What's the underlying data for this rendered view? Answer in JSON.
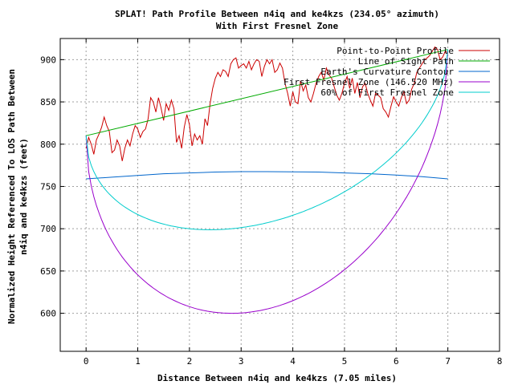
{
  "chart_data": {
    "type": "line",
    "title_line1": "SPLAT! Path Profile Between n4iq and ke4kzs (234.05° azimuth)",
    "title_line2": "With First Fresnel Zone",
    "xlabel": "Distance Between n4iq and ke4kzs (7.05 miles)",
    "ylabel_line1": "Normalized Height Referenced To LOS Path Between",
    "ylabel_line2": "n4iq and ke4kzs (feet)",
    "xlim": [
      -0.5,
      8
    ],
    "ylim": [
      555,
      925
    ],
    "xticks": [
      0,
      1,
      2,
      3,
      4,
      5,
      6,
      7,
      8
    ],
    "yticks": [
      600,
      650,
      700,
      750,
      800,
      850,
      900
    ],
    "grid": true,
    "legend_position": "top-right",
    "series": [
      {
        "name": "Point-to-Point Profile",
        "color": "#cc0000",
        "x": [
          0,
          0.05,
          0.1,
          0.15,
          0.2,
          0.25,
          0.3,
          0.35,
          0.4,
          0.45,
          0.5,
          0.55,
          0.6,
          0.65,
          0.7,
          0.75,
          0.8,
          0.85,
          0.9,
          0.95,
          1.0,
          1.05,
          1.1,
          1.15,
          1.2,
          1.25,
          1.3,
          1.35,
          1.4,
          1.45,
          1.5,
          1.55,
          1.6,
          1.65,
          1.7,
          1.75,
          1.8,
          1.85,
          1.9,
          1.95,
          2.0,
          2.05,
          2.1,
          2.15,
          2.2,
          2.25,
          2.3,
          2.35,
          2.4,
          2.45,
          2.5,
          2.55,
          2.6,
          2.65,
          2.7,
          2.75,
          2.8,
          2.85,
          2.9,
          2.95,
          3.0,
          3.05,
          3.1,
          3.15,
          3.2,
          3.25,
          3.3,
          3.35,
          3.4,
          3.45,
          3.5,
          3.55,
          3.6,
          3.65,
          3.7,
          3.75,
          3.8,
          3.85,
          3.9,
          3.95,
          4.0,
          4.05,
          4.1,
          4.15,
          4.2,
          4.25,
          4.3,
          4.35,
          4.4,
          4.45,
          4.5,
          4.55,
          4.6,
          4.65,
          4.7,
          4.75,
          4.8,
          4.85,
          4.9,
          4.95,
          5.0,
          5.05,
          5.1,
          5.15,
          5.2,
          5.25,
          5.3,
          5.35,
          5.4,
          5.45,
          5.5,
          5.55,
          5.6,
          5.65,
          5.7,
          5.75,
          5.8,
          5.85,
          5.9,
          5.95,
          6.0,
          6.05,
          6.1,
          6.15,
          6.2,
          6.25,
          6.3,
          6.35,
          6.4,
          6.45,
          6.5,
          6.55,
          6.6,
          6.65,
          6.7,
          6.75,
          6.8,
          6.85,
          6.9,
          6.95,
          7.0
        ],
        "values": [
          795,
          808,
          800,
          788,
          805,
          812,
          820,
          832,
          822,
          815,
          790,
          793,
          805,
          798,
          780,
          795,
          805,
          798,
          812,
          822,
          818,
          808,
          815,
          818,
          830,
          855,
          850,
          838,
          855,
          843,
          828,
          848,
          840,
          852,
          842,
          802,
          810,
          795,
          820,
          835,
          823,
          798,
          812,
          805,
          810,
          800,
          830,
          822,
          848,
          866,
          878,
          885,
          880,
          888,
          886,
          880,
          895,
          900,
          902,
          890,
          893,
          895,
          890,
          898,
          888,
          895,
          900,
          898,
          880,
          892,
          900,
          895,
          900,
          885,
          888,
          896,
          890,
          872,
          860,
          845,
          862,
          850,
          848,
          875,
          863,
          870,
          855,
          850,
          860,
          872,
          880,
          885,
          876,
          890,
          882,
          878,
          868,
          858,
          852,
          860,
          872,
          880,
          866,
          878,
          860,
          873,
          855,
          868,
          872,
          860,
          852,
          845,
          860,
          858,
          855,
          842,
          838,
          832,
          845,
          856,
          850,
          845,
          855,
          862,
          848,
          852,
          865,
          872,
          885,
          890,
          895,
          900,
          902,
          905,
          910,
          915,
          912,
          900,
          903,
          910,
          908
        ]
      },
      {
        "name": "Line of Sight Path",
        "color": "#00aa00",
        "x": [
          0,
          7
        ],
        "values": [
          810,
          912
        ]
      },
      {
        "name": "Earth's Curvature Contour",
        "color": "#0066cc",
        "x": [
          0,
          0.5,
          1,
          1.5,
          2,
          2.5,
          3,
          3.5,
          4,
          4.5,
          5,
          5.5,
          6,
          6.5,
          7
        ],
        "values": [
          759,
          761,
          763,
          765,
          766,
          767,
          767.5,
          767.5,
          767.3,
          767,
          766,
          765,
          763.5,
          761.5,
          759
        ]
      },
      {
        "name": "First Fresnel Zone (146.520 MHz)",
        "color": "#9900cc",
        "fresnel_radius_at_midpoint": 256,
        "values_endpoints": [
          810,
          912
        ],
        "min_value": 606
      },
      {
        "name": "60% of First Fresnel Zone",
        "color": "#00cccc",
        "fresnel_radius_at_midpoint": 154,
        "values_endpoints": [
          810,
          912
        ],
        "min_value": 703
      }
    ]
  }
}
